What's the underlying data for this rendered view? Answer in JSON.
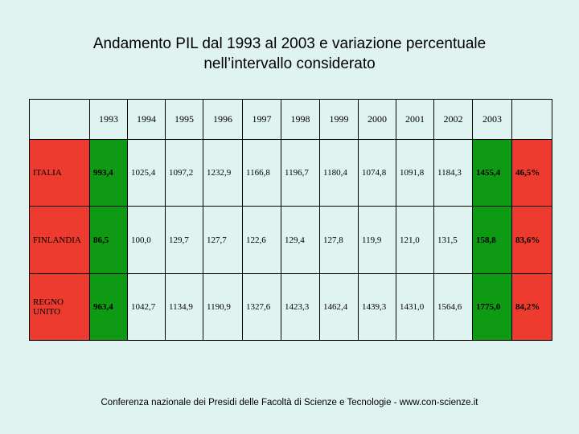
{
  "title": {
    "line1": "Andamento PIL dal 1993 al 2003 e variazione percentuale",
    "line2": "nell’intervallo considerato"
  },
  "table": {
    "years": [
      "1993",
      "1994",
      "1995",
      "1996",
      "1997",
      "1998",
      "1999",
      "2000",
      "2001",
      "2002",
      "2003"
    ],
    "rows": [
      {
        "country": "ITALIA",
        "values": [
          "993,4",
          "1025,4",
          "1097,2",
          "1232,9",
          "1166,8",
          "1196,7",
          "1180,4",
          "1074,8",
          "1091,8",
          "1184,3",
          "1455,4"
        ],
        "change": "46,5%"
      },
      {
        "country": "FINLANDIA",
        "values": [
          "86,5",
          "100,0",
          "129,7",
          "127,7",
          "122,6",
          "129,4",
          "127,8",
          "119,9",
          "121,0",
          "131,5",
          "158,8"
        ],
        "change": "83,6%"
      },
      {
        "country": "REGNO UNITO",
        "values": [
          "963,4",
          "1042,7",
          "1134,9",
          "1190,9",
          "1327,6",
          "1423,3",
          "1462,4",
          "1439,3",
          "1431,0",
          "1564,6",
          "1775,0"
        ],
        "change": "84,2%"
      }
    ]
  },
  "colors": {
    "red": "#ee3b2f",
    "green": "#0e9a13",
    "background": "#dff3f1"
  },
  "footer": "Conferenza nazionale dei Presidi delle Facoltà di Scienze e Tecnologie  -   www.con-scienze.it"
}
